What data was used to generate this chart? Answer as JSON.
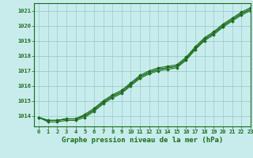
{
  "title": "Graphe pression niveau de la mer (hPa)",
  "background_color": "#c8ecec",
  "grid_color": "#99cccc",
  "line_color": "#1a6b1a",
  "xlim": [
    -0.5,
    23
  ],
  "ylim": [
    1013.3,
    1021.5
  ],
  "yticks": [
    1014,
    1015,
    1016,
    1017,
    1018,
    1019,
    1020,
    1021
  ],
  "xticks": [
    0,
    1,
    2,
    3,
    4,
    5,
    6,
    7,
    8,
    9,
    10,
    11,
    12,
    13,
    14,
    15,
    16,
    17,
    18,
    19,
    20,
    21,
    22,
    23
  ],
  "lines": [
    [
      1013.9,
      1013.7,
      1013.7,
      1013.8,
      1013.8,
      1014.1,
      1014.5,
      1015.0,
      1015.4,
      1015.7,
      1016.2,
      1016.7,
      1017.0,
      1017.2,
      1017.3,
      1017.4,
      1017.9,
      1018.6,
      1019.2,
      1019.6,
      1020.1,
      1020.5,
      1020.9,
      1021.2
    ],
    [
      1013.9,
      1013.7,
      1013.7,
      1013.8,
      1013.8,
      1014.0,
      1014.4,
      1014.9,
      1015.3,
      1015.6,
      1016.1,
      1016.6,
      1016.9,
      1017.1,
      1017.2,
      1017.3,
      1017.8,
      1018.5,
      1019.1,
      1019.5,
      1020.0,
      1020.4,
      1020.8,
      1021.1
    ],
    [
      1013.9,
      1013.7,
      1013.7,
      1013.8,
      1013.8,
      1014.0,
      1014.4,
      1014.9,
      1015.3,
      1015.6,
      1016.1,
      1016.6,
      1016.9,
      1017.1,
      1017.2,
      1017.3,
      1017.8,
      1018.5,
      1019.1,
      1019.5,
      1020.0,
      1020.4,
      1020.8,
      1021.1
    ],
    [
      1013.9,
      1013.6,
      1013.6,
      1013.7,
      1013.7,
      1013.9,
      1014.3,
      1014.8,
      1015.2,
      1015.5,
      1016.0,
      1016.5,
      1016.8,
      1017.0,
      1017.1,
      1017.2,
      1017.7,
      1018.4,
      1019.0,
      1019.4,
      1019.9,
      1020.3,
      1020.7,
      1021.0
    ]
  ],
  "marker_line_indices": [
    0,
    3
  ],
  "figwidth": 3.2,
  "figheight": 2.0,
  "dpi": 100
}
